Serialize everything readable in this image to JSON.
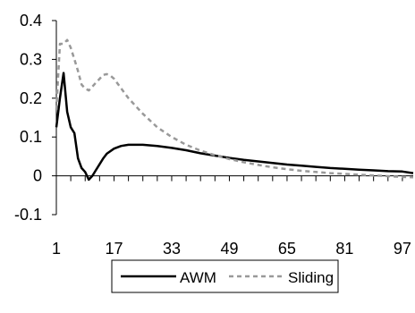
{
  "chart_data": {
    "type": "line",
    "title": "",
    "xlabel": "",
    "ylabel": "",
    "xlim": [
      1,
      100
    ],
    "ylim": [
      -0.1,
      0.4
    ],
    "y_ticks": [
      -0.1,
      0,
      0.1,
      0.2,
      0.3,
      0.4
    ],
    "y_tick_labels": [
      "-0.1",
      "0",
      "0.1",
      "0.2",
      "0.3",
      "0.4"
    ],
    "x_ticks": [
      1,
      17,
      33,
      49,
      65,
      81,
      97
    ],
    "x_tick_labels": [
      "1",
      "17",
      "33",
      "49",
      "65",
      "81",
      "97"
    ],
    "grid": false,
    "legend_position": "bottom",
    "series": [
      {
        "name": "AWM",
        "color": "#000000",
        "style": "solid",
        "points": [
          [
            1,
            0.125
          ],
          [
            2,
            0.2
          ],
          [
            3,
            0.265
          ],
          [
            4,
            0.165
          ],
          [
            5,
            0.125
          ],
          [
            6,
            0.11
          ],
          [
            7,
            0.045
          ],
          [
            8,
            0.02
          ],
          [
            9,
            0.01
          ],
          [
            10,
            -0.01
          ],
          [
            11,
            0.0
          ],
          [
            12,
            0.015
          ],
          [
            13,
            0.03
          ],
          [
            14,
            0.045
          ],
          [
            15,
            0.057
          ],
          [
            17,
            0.07
          ],
          [
            19,
            0.077
          ],
          [
            21,
            0.08
          ],
          [
            25,
            0.08
          ],
          [
            29,
            0.077
          ],
          [
            33,
            0.072
          ],
          [
            37,
            0.066
          ],
          [
            41,
            0.058
          ],
          [
            45,
            0.052
          ],
          [
            49,
            0.046
          ],
          [
            53,
            0.041
          ],
          [
            57,
            0.037
          ],
          [
            61,
            0.033
          ],
          [
            65,
            0.029
          ],
          [
            69,
            0.026
          ],
          [
            73,
            0.023
          ],
          [
            77,
            0.02
          ],
          [
            81,
            0.018
          ],
          [
            85,
            0.016
          ],
          [
            89,
            0.014
          ],
          [
            93,
            0.012
          ],
          [
            97,
            0.011
          ],
          [
            100,
            0.007
          ]
        ]
      },
      {
        "name": "Sliding",
        "color": "#999999",
        "style": "dashed",
        "points": [
          [
            1,
            0.17
          ],
          [
            2,
            0.34
          ],
          [
            3,
            0.34
          ],
          [
            4,
            0.35
          ],
          [
            5,
            0.33
          ],
          [
            6,
            0.3
          ],
          [
            7,
            0.27
          ],
          [
            8,
            0.235
          ],
          [
            9,
            0.225
          ],
          [
            10,
            0.22
          ],
          [
            11,
            0.23
          ],
          [
            12,
            0.24
          ],
          [
            13,
            0.25
          ],
          [
            14,
            0.26
          ],
          [
            15,
            0.262
          ],
          [
            16,
            0.258
          ],
          [
            17,
            0.25
          ],
          [
            19,
            0.225
          ],
          [
            21,
            0.2
          ],
          [
            25,
            0.16
          ],
          [
            29,
            0.125
          ],
          [
            33,
            0.1
          ],
          [
            37,
            0.08
          ],
          [
            41,
            0.065
          ],
          [
            45,
            0.053
          ],
          [
            49,
            0.043
          ],
          [
            53,
            0.035
          ],
          [
            57,
            0.028
          ],
          [
            61,
            0.022
          ],
          [
            65,
            0.017
          ],
          [
            69,
            0.013
          ],
          [
            73,
            0.01
          ],
          [
            77,
            0.007
          ],
          [
            81,
            0.005
          ],
          [
            85,
            0.003
          ],
          [
            89,
            0.001
          ],
          [
            93,
            -0.001
          ],
          [
            97,
            -0.003
          ],
          [
            100,
            -0.004
          ]
        ]
      }
    ]
  }
}
